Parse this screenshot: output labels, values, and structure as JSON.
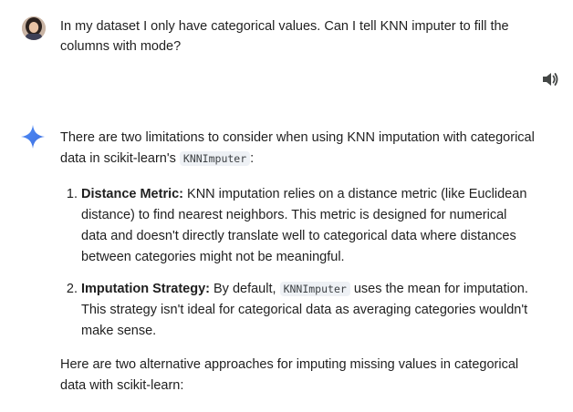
{
  "user": {
    "message": "In my dataset I only have categorical values. Can I tell KNN imputer to fill the columns with mode?"
  },
  "icons": {
    "avatar": "user-avatar",
    "speaker": "speaker-icon",
    "gemini": "gemini-sparkle-icon",
    "accent_color": "#4a7ef0"
  },
  "response": {
    "intro_before": "There are two limitations to consider when using KNN imputation with categorical data in scikit-learn's ",
    "intro_code": "KNNImputer",
    "intro_after": ":",
    "points": [
      {
        "title": "Distance Metric:",
        "text_before": " KNN imputation relies on a distance metric (like Euclidean distance) to find nearest neighbors. This metric is designed for numerical data and doesn't directly translate well to categorical data where distances between categories might not be meaningful.",
        "code": "",
        "text_after": ""
      },
      {
        "title": "Imputation Strategy:",
        "text_before": " By default, ",
        "code": "KNNImputer",
        "text_after": " uses the mean for imputation. This strategy isn't ideal for categorical data as averaging categories wouldn't make sense."
      }
    ],
    "closing": "Here are two alternative approaches for imputing missing values in categorical data with scikit-learn:"
  }
}
